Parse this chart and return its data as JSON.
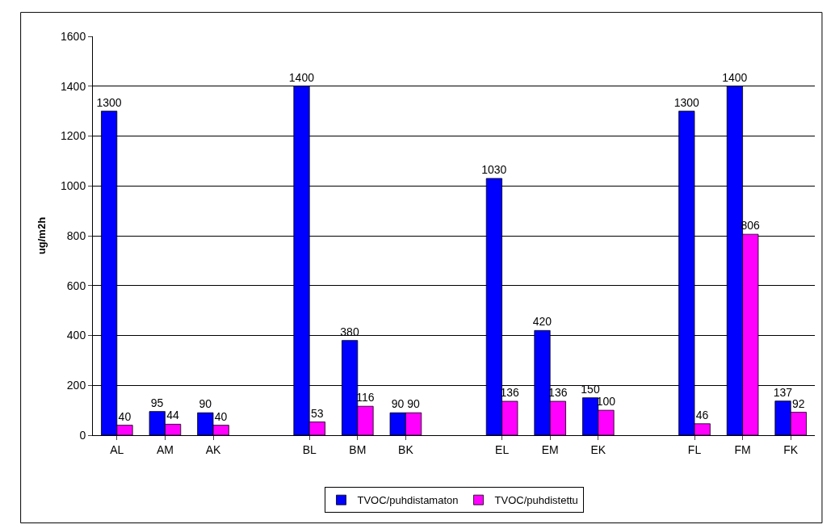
{
  "chart_data": {
    "type": "bar",
    "ylabel": "ug/m2h",
    "categories": [
      "AL",
      "AM",
      "AK",
      null,
      "BL",
      "BM",
      "BK",
      null,
      "EL",
      "EM",
      "EK",
      null,
      "FL",
      "FM",
      "FK"
    ],
    "series": [
      {
        "name": "TVOC/puhdistamaton",
        "color": "#0000ff",
        "values": [
          1300,
          95,
          90,
          null,
          1400,
          380,
          90,
          null,
          1030,
          420,
          150,
          null,
          1300,
          1400,
          137
        ]
      },
      {
        "name": "TVOC/puhdistettu",
        "color": "#ff00ff",
        "values": [
          40,
          44,
          40,
          null,
          53,
          116,
          90,
          null,
          136,
          136,
          100,
          null,
          46,
          806,
          92
        ]
      }
    ],
    "ylim": [
      0,
      1600
    ],
    "yticks": [
      0,
      200,
      400,
      600,
      800,
      1000,
      1200,
      1400,
      1600
    ],
    "grid": "y",
    "data_labels": true,
    "legend": "bottom"
  }
}
